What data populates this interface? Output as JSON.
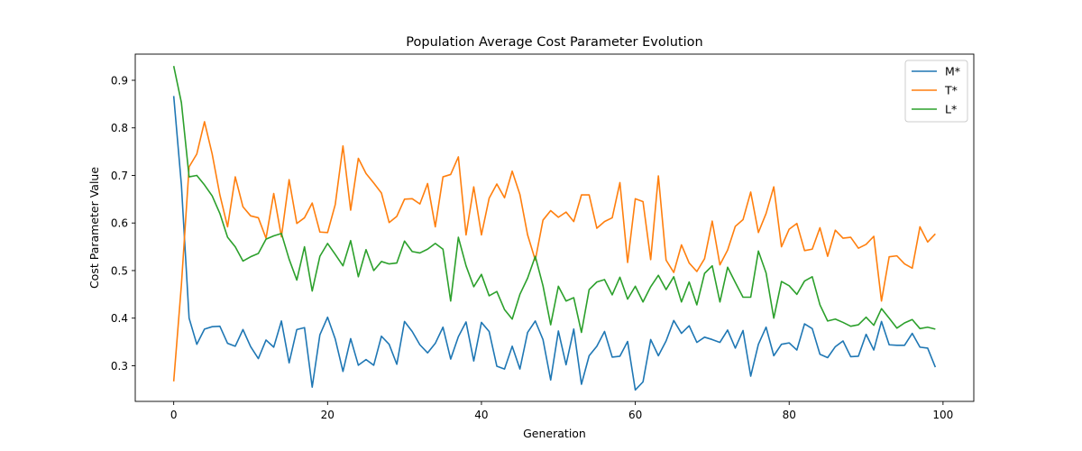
{
  "chart_data": {
    "type": "line",
    "title": "Population Average Cost Parameter Evolution",
    "xlabel": "Generation",
    "ylabel": "Cost Parameter Value",
    "xlim": [
      -5,
      104
    ],
    "ylim": [
      0.225,
      0.955
    ],
    "xticks": [
      0,
      20,
      40,
      60,
      80,
      100
    ],
    "yticks": [
      0.3,
      0.4,
      0.5,
      0.6,
      0.7,
      0.8,
      0.9
    ],
    "ytick_labels": [
      "0.3",
      "0.4",
      "0.5",
      "0.6",
      "0.7",
      "0.8",
      "0.9"
    ],
    "grid": false,
    "legend_position": "top-right",
    "x": [
      0,
      1,
      2,
      3,
      4,
      5,
      6,
      7,
      8,
      9,
      10,
      11,
      12,
      13,
      14,
      15,
      16,
      17,
      18,
      19,
      20,
      21,
      22,
      23,
      24,
      25,
      26,
      27,
      28,
      29,
      30,
      31,
      32,
      33,
      34,
      35,
      36,
      37,
      38,
      39,
      40,
      41,
      42,
      43,
      44,
      45,
      46,
      47,
      48,
      49,
      50,
      51,
      52,
      53,
      54,
      55,
      56,
      57,
      58,
      59,
      60,
      61,
      62,
      63,
      64,
      65,
      66,
      67,
      68,
      69,
      70,
      71,
      72,
      73,
      74,
      75,
      76,
      77,
      78,
      79,
      80,
      81,
      82,
      83,
      84,
      85,
      86,
      87,
      88,
      89,
      90,
      91,
      92,
      93,
      94,
      95,
      96,
      97,
      98,
      99
    ],
    "series": [
      {
        "name": "M*",
        "color": "#1f77b4",
        "values": [
          0.867,
          0.68,
          0.4,
          0.345,
          0.377,
          0.382,
          0.383,
          0.347,
          0.341,
          0.376,
          0.34,
          0.315,
          0.354,
          0.339,
          0.394,
          0.306,
          0.376,
          0.38,
          0.255,
          0.365,
          0.402,
          0.356,
          0.288,
          0.357,
          0.301,
          0.313,
          0.301,
          0.362,
          0.345,
          0.303,
          0.393,
          0.372,
          0.344,
          0.327,
          0.347,
          0.381,
          0.314,
          0.361,
          0.392,
          0.31,
          0.391,
          0.372,
          0.299,
          0.293,
          0.341,
          0.293,
          0.37,
          0.394,
          0.355,
          0.27,
          0.373,
          0.302,
          0.377,
          0.261,
          0.321,
          0.341,
          0.372,
          0.318,
          0.32,
          0.351,
          0.249,
          0.266,
          0.355,
          0.321,
          0.352,
          0.395,
          0.368,
          0.384,
          0.349,
          0.36,
          0.355,
          0.349,
          0.375,
          0.337,
          0.374,
          0.278,
          0.345,
          0.381,
          0.321,
          0.345,
          0.348,
          0.333,
          0.388,
          0.378,
          0.324,
          0.317,
          0.34,
          0.352,
          0.319,
          0.32,
          0.366,
          0.333,
          0.393,
          0.344,
          0.343,
          0.343,
          0.368,
          0.339,
          0.337,
          0.297
        ]
      },
      {
        "name": "T*",
        "color": "#ff7f0e",
        "values": [
          0.267,
          0.47,
          0.718,
          0.745,
          0.813,
          0.745,
          0.659,
          0.592,
          0.697,
          0.634,
          0.615,
          0.611,
          0.568,
          0.662,
          0.571,
          0.691,
          0.599,
          0.611,
          0.642,
          0.581,
          0.58,
          0.639,
          0.762,
          0.627,
          0.736,
          0.704,
          0.684,
          0.663,
          0.601,
          0.614,
          0.65,
          0.651,
          0.64,
          0.683,
          0.592,
          0.697,
          0.702,
          0.739,
          0.575,
          0.676,
          0.575,
          0.652,
          0.682,
          0.653,
          0.709,
          0.66,
          0.575,
          0.522,
          0.606,
          0.626,
          0.612,
          0.623,
          0.603,
          0.659,
          0.659,
          0.589,
          0.603,
          0.611,
          0.685,
          0.517,
          0.651,
          0.645,
          0.523,
          0.699,
          0.522,
          0.496,
          0.554,
          0.516,
          0.498,
          0.525,
          0.604,
          0.512,
          0.543,
          0.593,
          0.607,
          0.665,
          0.58,
          0.62,
          0.676,
          0.55,
          0.587,
          0.599,
          0.542,
          0.545,
          0.59,
          0.53,
          0.585,
          0.568,
          0.57,
          0.547,
          0.555,
          0.572,
          0.436,
          0.529,
          0.531,
          0.514,
          0.505,
          0.592,
          0.56,
          0.577
        ]
      },
      {
        "name": "L*",
        "color": "#2ca02c",
        "values": [
          0.93,
          0.853,
          0.697,
          0.7,
          0.68,
          0.657,
          0.62,
          0.57,
          0.55,
          0.52,
          0.529,
          0.536,
          0.566,
          0.573,
          0.578,
          0.524,
          0.48,
          0.55,
          0.457,
          0.53,
          0.557,
          0.534,
          0.51,
          0.563,
          0.487,
          0.544,
          0.5,
          0.519,
          0.514,
          0.516,
          0.562,
          0.54,
          0.537,
          0.545,
          0.557,
          0.545,
          0.436,
          0.57,
          0.51,
          0.466,
          0.492,
          0.447,
          0.456,
          0.418,
          0.398,
          0.45,
          0.484,
          0.53,
          0.468,
          0.386,
          0.467,
          0.436,
          0.443,
          0.37,
          0.46,
          0.476,
          0.481,
          0.449,
          0.486,
          0.44,
          0.467,
          0.434,
          0.466,
          0.49,
          0.46,
          0.487,
          0.434,
          0.476,
          0.428,
          0.494,
          0.51,
          0.434,
          0.507,
          0.475,
          0.444,
          0.444,
          0.541,
          0.495,
          0.4,
          0.477,
          0.468,
          0.45,
          0.478,
          0.487,
          0.428,
          0.394,
          0.398,
          0.391,
          0.383,
          0.386,
          0.402,
          0.385,
          0.42,
          0.4,
          0.379,
          0.39,
          0.397,
          0.378,
          0.381,
          0.377
        ]
      }
    ]
  }
}
